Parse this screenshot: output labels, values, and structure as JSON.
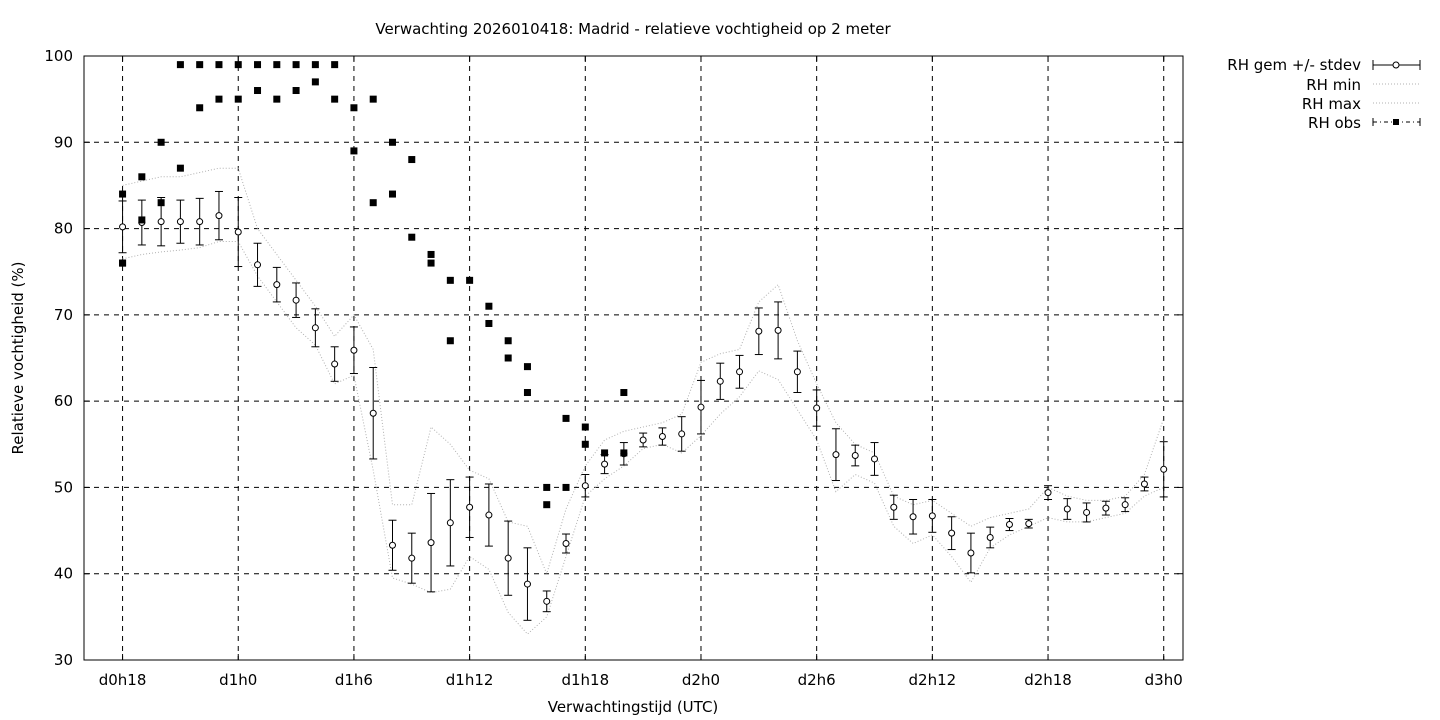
{
  "chart_data": {
    "type": "line",
    "title": "Verwachting 2026010418: Madrid - relatieve vochtigheid op 2 meter",
    "xlabel": "Verwachtingstijd (UTC)",
    "ylabel": "Relatieve vochtigheid (%)",
    "xlim": [
      -2,
      55
    ],
    "ylim": [
      30,
      100
    ],
    "x_unit": "hours since d0h18",
    "grid": true,
    "legend_position": "outside-top-right",
    "x_ticks": [
      {
        "x": 0,
        "label": "d0h18"
      },
      {
        "x": 6,
        "label": "d1h0"
      },
      {
        "x": 12,
        "label": "d1h6"
      },
      {
        "x": 18,
        "label": "d1h12"
      },
      {
        "x": 24,
        "label": "d1h18"
      },
      {
        "x": 30,
        "label": "d2h0"
      },
      {
        "x": 36,
        "label": "d2h6"
      },
      {
        "x": 42,
        "label": "d2h12"
      },
      {
        "x": 48,
        "label": "d2h18"
      },
      {
        "x": 54,
        "label": "d3h0"
      }
    ],
    "y_ticks": [
      30,
      40,
      50,
      60,
      70,
      80,
      90,
      100
    ],
    "legend": [
      "RH gem +/- stdev",
      "RH min",
      "RH max",
      "RH obs"
    ],
    "series": [
      {
        "name": "RH gem +/- stdev",
        "style": "errorbars-open-circle",
        "points": [
          {
            "x": 0,
            "y": 80.2,
            "sd": 3.0
          },
          {
            "x": 1,
            "y": 80.7,
            "sd": 2.6
          },
          {
            "x": 2,
            "y": 80.8,
            "sd": 2.8
          },
          {
            "x": 3,
            "y": 80.8,
            "sd": 2.5
          },
          {
            "x": 4,
            "y": 80.8,
            "sd": 2.7
          },
          {
            "x": 5,
            "y": 81.5,
            "sd": 2.8
          },
          {
            "x": 6,
            "y": 79.6,
            "sd": 4.0
          },
          {
            "x": 7,
            "y": 75.8,
            "sd": 2.5
          },
          {
            "x": 8,
            "y": 73.5,
            "sd": 2.0
          },
          {
            "x": 9,
            "y": 71.7,
            "sd": 2.0
          },
          {
            "x": 10,
            "y": 68.5,
            "sd": 2.2
          },
          {
            "x": 11,
            "y": 64.3,
            "sd": 2.0
          },
          {
            "x": 12,
            "y": 65.9,
            "sd": 2.7
          },
          {
            "x": 13,
            "y": 58.6,
            "sd": 5.3
          },
          {
            "x": 14,
            "y": 43.3,
            "sd": 2.9
          },
          {
            "x": 15,
            "y": 41.8,
            "sd": 2.9
          },
          {
            "x": 16,
            "y": 43.6,
            "sd": 5.7
          },
          {
            "x": 17,
            "y": 45.9,
            "sd": 5.0
          },
          {
            "x": 18,
            "y": 47.7,
            "sd": 3.5
          },
          {
            "x": 19,
            "y": 46.8,
            "sd": 3.6
          },
          {
            "x": 20,
            "y": 41.8,
            "sd": 4.3
          },
          {
            "x": 21,
            "y": 38.8,
            "sd": 4.2
          },
          {
            "x": 22,
            "y": 36.8,
            "sd": 1.2
          },
          {
            "x": 23,
            "y": 43.5,
            "sd": 1.1
          },
          {
            "x": 24,
            "y": 50.2,
            "sd": 1.3
          },
          {
            "x": 25,
            "y": 52.7,
            "sd": 1.1
          },
          {
            "x": 26,
            "y": 53.9,
            "sd": 1.3
          },
          {
            "x": 27,
            "y": 55.5,
            "sd": 0.8
          },
          {
            "x": 28,
            "y": 55.9,
            "sd": 1.0
          },
          {
            "x": 29,
            "y": 56.2,
            "sd": 2.0
          },
          {
            "x": 30,
            "y": 59.3,
            "sd": 3.1
          },
          {
            "x": 31,
            "y": 62.3,
            "sd": 2.1
          },
          {
            "x": 32,
            "y": 63.4,
            "sd": 1.9
          },
          {
            "x": 33,
            "y": 68.1,
            "sd": 2.7
          },
          {
            "x": 34,
            "y": 68.2,
            "sd": 3.3
          },
          {
            "x": 35,
            "y": 63.4,
            "sd": 2.4
          },
          {
            "x": 36,
            "y": 59.2,
            "sd": 2.1
          },
          {
            "x": 37,
            "y": 53.8,
            "sd": 3.0
          },
          {
            "x": 38,
            "y": 53.7,
            "sd": 1.2
          },
          {
            "x": 39,
            "y": 53.3,
            "sd": 1.9
          },
          {
            "x": 40,
            "y": 47.7,
            "sd": 1.4
          },
          {
            "x": 41,
            "y": 46.6,
            "sd": 2.0
          },
          {
            "x": 42,
            "y": 46.7,
            "sd": 1.9
          },
          {
            "x": 43,
            "y": 44.7,
            "sd": 1.9
          },
          {
            "x": 44,
            "y": 42.4,
            "sd": 2.3
          },
          {
            "x": 45,
            "y": 44.2,
            "sd": 1.2
          },
          {
            "x": 46,
            "y": 45.7,
            "sd": 0.7
          },
          {
            "x": 47,
            "y": 45.8,
            "sd": 0.5
          },
          {
            "x": 48,
            "y": 49.4,
            "sd": 0.8
          },
          {
            "x": 49,
            "y": 47.5,
            "sd": 1.2
          },
          {
            "x": 50,
            "y": 47.1,
            "sd": 1.1
          },
          {
            "x": 51,
            "y": 47.6,
            "sd": 0.8
          },
          {
            "x": 52,
            "y": 48.0,
            "sd": 0.8
          },
          {
            "x": 53,
            "y": 50.4,
            "sd": 0.8
          },
          {
            "x": 54,
            "y": 52.1,
            "sd": 3.2
          }
        ]
      },
      {
        "name": "RH min",
        "style": "dotted-line",
        "color": "#b0b0b0",
        "x": [
          0,
          1,
          2,
          3,
          4,
          5,
          6,
          7,
          8,
          9,
          10,
          11,
          12,
          13,
          14,
          15,
          16,
          17,
          18,
          19,
          20,
          21,
          22,
          23,
          24,
          25,
          26,
          27,
          28,
          29,
          30,
          31,
          32,
          33,
          34,
          35,
          36,
          37,
          38,
          39,
          40,
          41,
          42,
          43,
          44,
          45,
          46,
          47,
          48,
          49,
          50,
          51,
          52,
          53,
          54
        ],
        "y": [
          76.5,
          77.0,
          77.3,
          77.5,
          77.8,
          78.5,
          78.5,
          74.5,
          71.5,
          68.5,
          66.5,
          62.0,
          63.0,
          52.0,
          39.5,
          38.8,
          37.8,
          38.2,
          42.0,
          40.5,
          35.5,
          33.0,
          35.0,
          42.0,
          49.0,
          51.0,
          52.5,
          54.5,
          55.0,
          54.0,
          56.0,
          58.5,
          60.5,
          63.5,
          62.5,
          59.0,
          55.5,
          49.5,
          51.5,
          50.5,
          45.5,
          43.5,
          44.5,
          42.0,
          39.0,
          43.0,
          44.5,
          45.5,
          46.5,
          46.0,
          46.0,
          46.5,
          47.0,
          49.0,
          50.0
        ]
      },
      {
        "name": "RH max",
        "style": "dotted-line",
        "color": "#b0b0b0",
        "x": [
          0,
          1,
          2,
          3,
          4,
          5,
          6,
          7,
          8,
          9,
          10,
          11,
          12,
          13,
          14,
          15,
          16,
          17,
          18,
          19,
          20,
          21,
          22,
          23,
          24,
          25,
          26,
          27,
          28,
          29,
          30,
          31,
          32,
          33,
          34,
          35,
          36,
          37,
          38,
          39,
          40,
          41,
          42,
          43,
          44,
          45,
          46,
          47,
          48,
          49,
          50,
          51,
          52,
          53,
          54
        ],
        "y": [
          85.0,
          85.5,
          86.0,
          86.0,
          86.5,
          87.0,
          87.0,
          80.0,
          77.0,
          74.0,
          71.0,
          67.5,
          70.0,
          66.0,
          48.0,
          48.0,
          57.0,
          55.0,
          52.0,
          51.0,
          46.0,
          45.5,
          40.0,
          47.5,
          52.5,
          55.5,
          56.5,
          57.0,
          57.5,
          58.5,
          64.5,
          65.5,
          66.0,
          71.5,
          73.5,
          67.0,
          62.0,
          57.5,
          55.0,
          54.0,
          49.0,
          48.0,
          48.5,
          47.0,
          45.5,
          46.5,
          47.0,
          47.5,
          50.0,
          49.0,
          48.5,
          48.5,
          49.0,
          51.5,
          58.0
        ]
      },
      {
        "name": "RH obs",
        "style": "filled-square",
        "x": [
          0,
          0,
          0,
          1,
          1,
          2,
          2,
          3,
          3,
          4,
          4,
          5,
          5,
          6,
          6,
          7,
          7,
          8,
          8,
          9,
          9,
          10,
          10,
          11,
          11,
          12,
          12,
          13,
          13,
          14,
          14,
          15,
          15,
          16,
          16,
          17,
          17,
          18,
          19,
          19,
          20,
          20,
          21,
          21,
          22,
          22,
          23,
          23,
          24,
          24,
          25,
          26,
          26
        ],
        "y": [
          84,
          76,
          76,
          86,
          81,
          90,
          83,
          87,
          99,
          94,
          99,
          95,
          99,
          95,
          99,
          96,
          99,
          95,
          99,
          96,
          99,
          97,
          99,
          95,
          99,
          94,
          89,
          83,
          95,
          84,
          90,
          79,
          88,
          77,
          76,
          74,
          67,
          74,
          71,
          69,
          67,
          65,
          64,
          61,
          50,
          48,
          58,
          50,
          57,
          55,
          54,
          61,
          54
        ]
      }
    ]
  }
}
